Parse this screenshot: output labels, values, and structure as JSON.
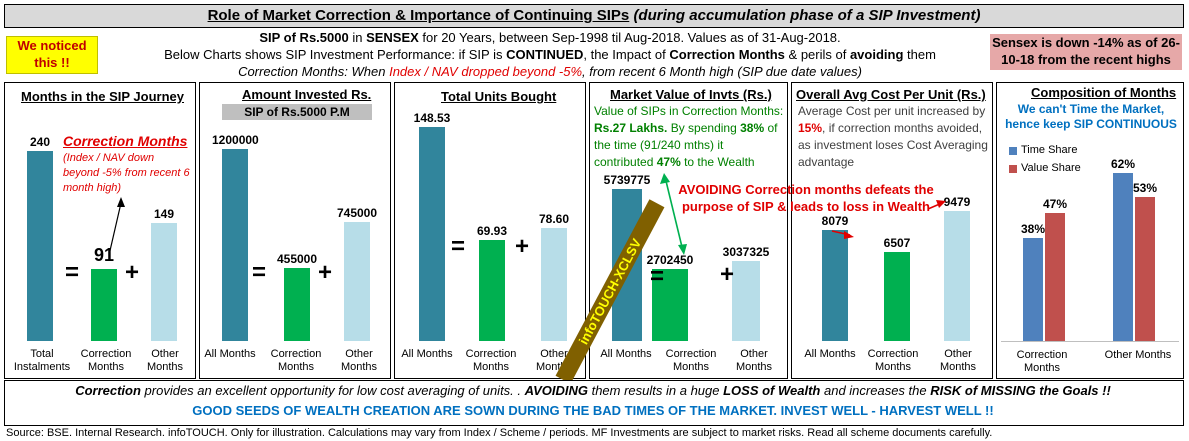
{
  "header": {
    "title_main": "Role of Market Correction & Importance of Continuing SIPs",
    "title_italic": "(during accumulation phase of a SIP Investment)"
  },
  "noticed": "We noticed this !!",
  "sensex_note": "Sensex is down -14% as of 26-10-18 from the recent highs",
  "info": {
    "l1_a": "SIP of Rs.5000",
    "l1_b": " in ",
    "l1_c": "SENSEX",
    "l1_d": " for 20 Years, between Sep-1998 til Aug-2018. Values as of 31-Aug-2018.",
    "l2_a": "Below Charts shows SIP Investment Performance: if SIP is ",
    "l2_b": "CONTINUED",
    "l2_c": ", the Impact of ",
    "l2_d": "Correction Months",
    "l2_e": " & perils of ",
    "l2_f": "avoiding",
    "l2_g": " them",
    "l3_a": "Correction Months: When ",
    "l3_b": "Index / NAV dropped beyond -5%",
    "l3_c": ", from recent 6 Month high (SIP due date values)"
  },
  "colors": {
    "teal": "#31859c",
    "green": "#00b050",
    "light": "#b7dde8",
    "blue": "#4f81bd",
    "maroon": "#c0504d",
    "red": "#e00000",
    "dark_green": "#008000"
  },
  "chart_data": [
    {
      "type": "bar",
      "title": "Months in the SIP Journey",
      "categories": [
        "Total Instalments",
        "Correction Months",
        "Other Months"
      ],
      "values": [
        240,
        91,
        149
      ],
      "value_labels": [
        "240",
        "91",
        "149"
      ],
      "annotation_title": "Correction Months",
      "annotation_text": "(Index / NAV down beyond -5% from recent 6 month high)"
    },
    {
      "type": "bar",
      "title": "Amount Invested Rs.",
      "subtitle": "SIP of Rs.5000 P.M",
      "categories": [
        "All Months",
        "Correction Months",
        "Other Months"
      ],
      "values": [
        1200000,
        455000,
        745000
      ],
      "value_labels": [
        "1200000",
        "455000",
        "745000"
      ]
    },
    {
      "type": "bar",
      "title": "Total Units Bought",
      "categories": [
        "All Months",
        "Correction Months",
        "Other Months"
      ],
      "values": [
        148.53,
        69.93,
        78.6
      ],
      "value_labels": [
        "148.53",
        "69.93",
        "78.60"
      ]
    },
    {
      "type": "bar",
      "title": "Market Value of Invts (Rs.)",
      "categories": [
        "All Months",
        "Correction Months",
        "Other Months"
      ],
      "values": [
        5739775,
        2702450,
        3037325
      ],
      "value_labels": [
        "5739775",
        "2702450",
        "3037325"
      ],
      "note_a": "Value of SIPs in Correction Months:",
      "note_b": "Rs.27 Lakhs.",
      "note_c": " By spending ",
      "note_d": "38%",
      "note_e": " of the time (91/240 mths) it contributed ",
      "note_f": "47%",
      "note_g": " to the Wealth",
      "watermark": "infoTOUCH-XCLSV"
    },
    {
      "type": "line_bar",
      "title": "Overall Avg Cost Per Unit (Rs.)",
      "categories": [
        "All Months",
        "Correction Months",
        "Other Months"
      ],
      "values": [
        8079,
        6507,
        9479
      ],
      "value_labels": [
        "8079",
        "6507",
        "9479"
      ],
      "note_a": "Average Cost per unit increased by ",
      "note_b": "15%",
      "note_c": ", if correction months avoided, as investment loses Cost Averaging advantage",
      "callout": "AVOIDING Correction months defeats the purpose of SIP & leads to loss in Wealth"
    },
    {
      "type": "bar",
      "title": "Composition of Months",
      "subtitle": "We can't Time the Market, hence keep SIP CONTINUOUS",
      "categories": [
        "Correction Months",
        "Other Months"
      ],
      "series": [
        {
          "name": "Time Share",
          "values": [
            38,
            62
          ],
          "labels": [
            "38%",
            "62%"
          ]
        },
        {
          "name": "Value Share",
          "values": [
            47,
            53
          ],
          "labels": [
            "47%",
            "53%"
          ]
        }
      ],
      "ylim": [
        0,
        70
      ]
    }
  ],
  "ops": {
    "equals": "=",
    "plus": "+"
  },
  "footer": {
    "l1_a": "Correction",
    "l1_b": " provides an excellent opportunity for low cost averaging of units. . ",
    "l1_c": "AVOIDING",
    "l1_d": " them results in a huge ",
    "l1_e": "LOSS of Wealth",
    "l1_f": " and increases the ",
    "l1_g": "RISK of MISSING the Goals !!",
    "l2": "GOOD SEEDS OF WEALTH CREATION ARE SOWN DURING THE BAD TIMES OF THE MARKET. INVEST WELL - HARVEST WELL !!",
    "source": "Source: BSE. Internal Research. infoTOUCH. Only for illustration. Calculations may vary from Index / Scheme / periods. MF Investments are subject to market risks. Read all scheme documents carefully."
  }
}
